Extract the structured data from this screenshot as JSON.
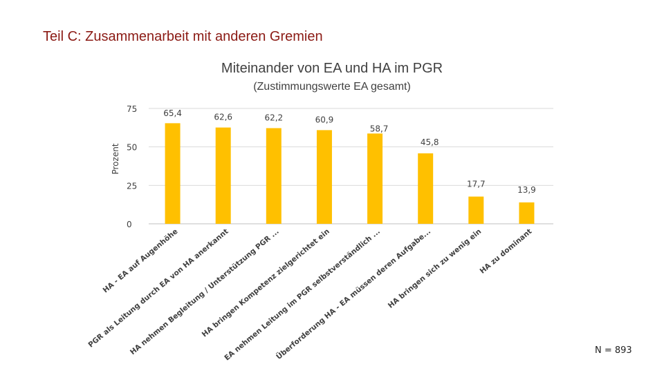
{
  "slide": {
    "title": "Teil C: Zusammenarbeit mit anderen Gremien",
    "footnote": "N = 893"
  },
  "chart_data": {
    "type": "bar",
    "title": "Miteinander von EA und HA im PGR",
    "subtitle": "(Zustimmungswerte EA gesamt)",
    "xlabel": "",
    "ylabel": "Prozent",
    "ylim": [
      0,
      75
    ],
    "yticks": [
      0,
      25,
      50,
      75
    ],
    "grid": true,
    "bar_color": "#ffc000",
    "categories": [
      "HA - EA auf Augenhöhe",
      "PGR als Leitung durch EA von HA anerkannt",
      "HA nehmen Begleitung / Unterstützung PGR ...",
      "HA bringen Kompetenz zielgerichtet ein",
      "EA nehmen Leitung im PGR selbstverständlich ...",
      "Überforderung HA - EA müssen deren Aufgabe...",
      "HA bringen sich zu wenig ein",
      "HA zu dominant"
    ],
    "values": [
      65.4,
      62.6,
      62.2,
      60.9,
      58.7,
      45.8,
      17.7,
      13.9
    ],
    "value_labels": [
      "65,4",
      "62,6",
      "62,2",
      "60,9",
      "58,7",
      "45,8",
      "17,7",
      "13,9"
    ]
  }
}
